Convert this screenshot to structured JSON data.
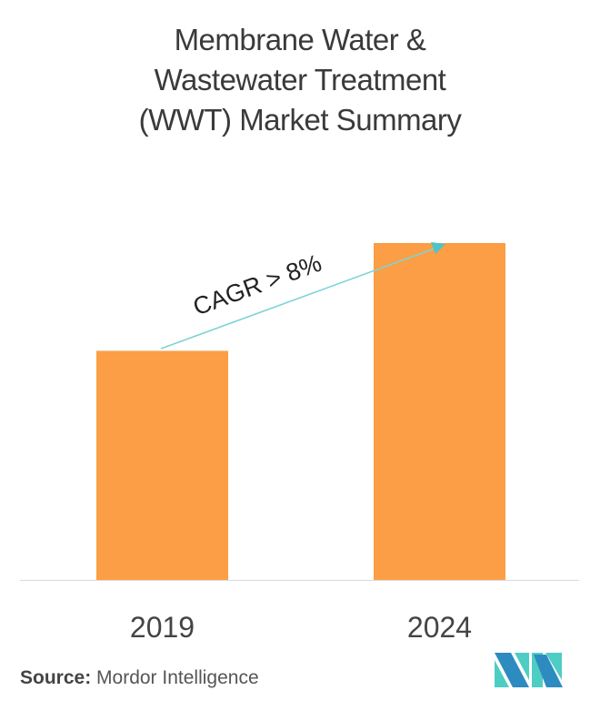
{
  "title_lines": [
    "Membrane Water &",
    "Wastewater Treatment",
    "(WWT) Market Summary"
  ],
  "chart_data": {
    "type": "bar",
    "title": "Membrane Water & Wastewater Treatment (WWT) Market Summary",
    "categories": [
      "2019",
      "2024"
    ],
    "values": [
      0.68,
      1.0
    ],
    "value_note_relative": true,
    "annotation": "CAGR > 8%",
    "bar_color": "#fb9e45",
    "arrow_color": "#7fd3d6",
    "grid": false,
    "legend": "none"
  },
  "source": {
    "label": "Source:",
    "text": "Mordor Intelligence"
  },
  "logo": {
    "colors": [
      "#2e8bc0",
      "#4ecdc4"
    ]
  }
}
